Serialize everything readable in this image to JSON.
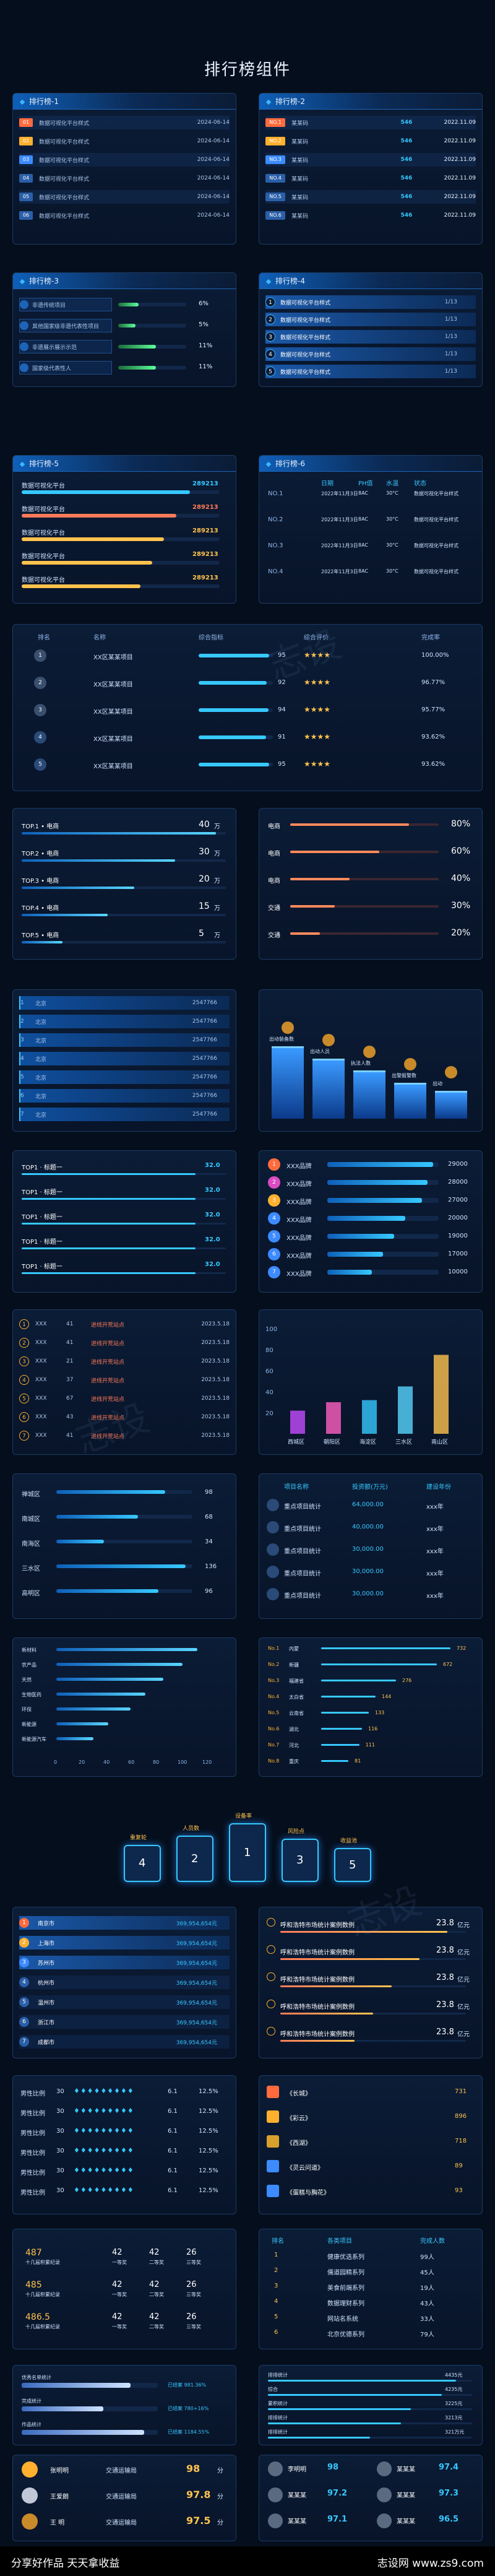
{
  "page": {
    "title": "排行榜组件"
  },
  "p1": {
    "title": "排行榜-1",
    "rows": [
      {
        "rank": "01",
        "label": "数据可视化平台样式",
        "date": "2024-06-14"
      },
      {
        "rank": "02",
        "label": "数据可视化平台样式",
        "date": "2024-06-14"
      },
      {
        "rank": "03",
        "label": "数据可视化平台样式",
        "date": "2024-06-14"
      },
      {
        "rank": "04",
        "label": "数据可视化平台样式",
        "date": "2024-06-14"
      },
      {
        "rank": "05",
        "label": "数据可视化平台样式",
        "date": "2024-06-14"
      },
      {
        "rank": "06",
        "label": "数据可视化平台样式",
        "date": "2024-06-14"
      }
    ]
  },
  "p2": {
    "title": "排行榜-2",
    "rows": [
      {
        "rank": "NO.1",
        "label": "某某码",
        "value": "546",
        "date": "2022.11.09"
      },
      {
        "rank": "NO.2",
        "label": "某某码",
        "value": "546",
        "date": "2022.11.09"
      },
      {
        "rank": "NO.3",
        "label": "某某码",
        "value": "546",
        "date": "2022.11.09"
      },
      {
        "rank": "NO.4",
        "label": "某某码",
        "value": "546",
        "date": "2022.11.09"
      },
      {
        "rank": "NO.5",
        "label": "某某码",
        "value": "546",
        "date": "2022.11.09"
      },
      {
        "rank": "NO.6",
        "label": "某某码",
        "value": "546",
        "date": "2022.11.09"
      }
    ]
  },
  "p3": {
    "title": "排行榜-3",
    "rows": [
      {
        "label": "非遗传统项目",
        "pct": "6%",
        "fill": 0.06
      },
      {
        "label": "其他国家级非遗代表性项目",
        "pct": "5%",
        "fill": 0.05
      },
      {
        "label": "非遗展示展示示范",
        "pct": "11%",
        "fill": 0.11
      },
      {
        "label": "国家级代表性人",
        "pct": "11%",
        "fill": 0.11
      }
    ]
  },
  "p4": {
    "title": "排行榜-4",
    "rows": [
      {
        "rank": "1",
        "label": "数据可视化平台样式",
        "count": "1/13"
      },
      {
        "rank": "2",
        "label": "数据可视化平台样式",
        "count": "1/13"
      },
      {
        "rank": "3",
        "label": "数据可视化平台样式",
        "count": "1/13"
      },
      {
        "rank": "4",
        "label": "数据可视化平台样式",
        "count": "1/13"
      },
      {
        "rank": "5",
        "label": "数据可视化平台样式",
        "count": "1/13"
      }
    ]
  },
  "p5": {
    "title": "排行榜-5",
    "rows": [
      {
        "label": "数据可视化平台",
        "value": "289213",
        "fill": 0.85,
        "color": "#36c8ff"
      },
      {
        "label": "数据可视化平台",
        "value": "289213",
        "fill": 0.78,
        "color": "#ff7a59"
      },
      {
        "label": "数据可视化平台",
        "value": "289213",
        "fill": 0.72,
        "color": "#ffc34d"
      },
      {
        "label": "数据可视化平台",
        "value": "289213",
        "fill": 0.66,
        "color": "#ffc34d"
      },
      {
        "label": "数据可视化平台",
        "value": "289213",
        "fill": 0.6,
        "color": "#ffc34d"
      }
    ]
  },
  "p6": {
    "title": "排行榜-6",
    "headers": [
      "日期",
      "PH值",
      "水温",
      "状态"
    ],
    "rows": [
      {
        "no": "NO.1",
        "date": "2022年11月3日",
        "ph": "8AC",
        "temp": "30°C",
        "state": "数据可视化平台样式"
      },
      {
        "no": "NO.2",
        "date": "2022年11月3日",
        "ph": "8AC",
        "temp": "30°C",
        "state": "数据可视化平台样式"
      },
      {
        "no": "NO.3",
        "date": "2022年11月3日",
        "ph": "8AC",
        "temp": "30°C",
        "state": "数据可视化平台样式"
      },
      {
        "no": "NO.4",
        "date": "2022年11月3日",
        "ph": "8AC",
        "temp": "30°C",
        "state": "数据可视化平台样式"
      }
    ]
  },
  "p7": {
    "headers": [
      "排名",
      "名称",
      "综合指标",
      "综合评价",
      "完成率"
    ],
    "rows": [
      {
        "rank": "1",
        "name": "XX区某某项目",
        "value": "95",
        "stars": 3,
        "pct": "100.00%",
        "fill": 0.95
      },
      {
        "rank": "2",
        "name": "XX区某某项目",
        "value": "92",
        "stars": 3,
        "pct": "96.77%",
        "fill": 0.92
      },
      {
        "rank": "3",
        "name": "XX区某某项目",
        "value": "94",
        "stars": 3,
        "pct": "95.77%",
        "fill": 0.94
      },
      {
        "rank": "4",
        "name": "XX区某某项目",
        "value": "91",
        "stars": 3,
        "pct": "93.62%",
        "fill": 0.91
      },
      {
        "rank": "5",
        "name": "XX区某某项目",
        "value": "95",
        "stars": 3,
        "pct": "93.62%",
        "fill": 0.95
      }
    ]
  },
  "p8": {
    "rows": [
      {
        "label": "TOP.1 • 电商",
        "value": "40",
        "unit": "万",
        "fill": 0.95
      },
      {
        "label": "TOP.2 • 电商",
        "value": "30",
        "unit": "万",
        "fill": 0.75
      },
      {
        "label": "TOP.3 • 电商",
        "value": "20",
        "unit": "万",
        "fill": 0.55
      },
      {
        "label": "TOP.4 • 电商",
        "value": "15",
        "unit": "万",
        "fill": 0.42
      },
      {
        "label": "TOP.5 • 电商",
        "value": "5",
        "unit": "万",
        "fill": 0.2
      }
    ]
  },
  "p9": {
    "rows": [
      {
        "label": "电商",
        "pct": "80%",
        "fill": 0.8
      },
      {
        "label": "电商",
        "pct": "60%",
        "fill": 0.6
      },
      {
        "label": "电商",
        "pct": "40%",
        "fill": 0.4
      },
      {
        "label": "交通",
        "pct": "30%",
        "fill": 0.3
      },
      {
        "label": "交通",
        "pct": "20%",
        "fill": 0.2
      }
    ]
  },
  "p10": {
    "rows": [
      {
        "rank": "1",
        "name": "北京",
        "value": "2547766"
      },
      {
        "rank": "2",
        "name": "北京",
        "value": "2547766"
      },
      {
        "rank": "3",
        "name": "北京",
        "value": "2547766"
      },
      {
        "rank": "4",
        "name": "北京",
        "value": "2547766"
      },
      {
        "rank": "5",
        "name": "北京",
        "value": "2547766"
      },
      {
        "rank": "6",
        "name": "北京",
        "value": "2547766"
      },
      {
        "rank": "7",
        "name": "北京",
        "value": "2547766"
      }
    ]
  },
  "p11": {
    "labels": [
      "出动装备数",
      "出动人员",
      "执法人数",
      "出警报警数",
      "出动"
    ],
    "heights": [
      0.9,
      0.75,
      0.6,
      0.45,
      0.35
    ]
  },
  "p12": {
    "rows": [
      {
        "label": "TOP1 · 标题一",
        "value": "32.0"
      },
      {
        "label": "TOP1 · 标题一",
        "value": "32.0"
      },
      {
        "label": "TOP1 · 标题一",
        "value": "32.0"
      },
      {
        "label": "TOP1 · 标题一",
        "value": "32.0"
      },
      {
        "label": "TOP1 · 标题一",
        "value": "32.0"
      }
    ]
  },
  "p13": {
    "rows": [
      {
        "rank": "1",
        "name": "XXX品牌",
        "value": "29000",
        "fill": 0.95
      },
      {
        "rank": "2",
        "name": "XXX品牌",
        "value": "28000",
        "fill": 0.9
      },
      {
        "rank": "3",
        "name": "XXX品牌",
        "value": "27000",
        "fill": 0.85
      },
      {
        "rank": "4",
        "name": "XXX品牌",
        "value": "20000",
        "fill": 0.7
      },
      {
        "rank": "5",
        "name": "XXX品牌",
        "value": "19000",
        "fill": 0.6
      },
      {
        "rank": "6",
        "name": "XXX品牌",
        "value": "17000",
        "fill": 0.5
      },
      {
        "rank": "7",
        "name": "XXX品牌",
        "value": "10000",
        "fill": 0.4
      }
    ]
  },
  "p14": {
    "rows": [
      {
        "rank": "1",
        "a": "XXX",
        "b": "41",
        "c": "进线开荒站点",
        "d": "2023.5.18"
      },
      {
        "rank": "2",
        "a": "XXX",
        "b": "41",
        "c": "进线开荒站点",
        "d": "2023.5.18"
      },
      {
        "rank": "3",
        "a": "XXX",
        "b": "21",
        "c": "进线开荒站点",
        "d": "2023.5.18"
      },
      {
        "rank": "4",
        "a": "XXX",
        "b": "37",
        "c": "进线开荒站点",
        "d": "2023.5.18"
      },
      {
        "rank": "5",
        "a": "XXX",
        "b": "67",
        "c": "进线开荒站点",
        "d": "2023.5.18"
      },
      {
        "rank": "6",
        "a": "XXX",
        "b": "43",
        "c": "进线开荒站点",
        "d": "2023.5.18"
      },
      {
        "rank": "7",
        "a": "XXX",
        "b": "41",
        "c": "进线开荒站点",
        "d": "2023.5.18"
      }
    ]
  },
  "chart_data": {
    "type": "bar",
    "categories": [
      "西城区",
      "朝阳区",
      "海淀区",
      "三水区",
      "南山区"
    ],
    "values": [
      22,
      30,
      32,
      45,
      75
    ],
    "ylim": [
      0,
      100
    ],
    "yticks": [
      "100",
      "80",
      "60",
      "40",
      "20"
    ]
  },
  "p16": {
    "rows": [
      {
        "label": "禅城区",
        "value": "98",
        "fill": 0.8
      },
      {
        "label": "南城区",
        "value": "68",
        "fill": 0.6
      },
      {
        "label": "南海区",
        "value": "34",
        "fill": 0.35
      },
      {
        "label": "三水区",
        "value": "136",
        "fill": 0.95
      },
      {
        "label": "高明区",
        "value": "96",
        "fill": 0.75
      }
    ]
  },
  "p17": {
    "headers": [
      "项目名称",
      "投资额(万元)",
      "建设年份"
    ],
    "rows": [
      {
        "name": "重点项目统计",
        "value": "64,000.00",
        "year": "xxx年"
      },
      {
        "name": "重点项目统计",
        "value": "40,000.00",
        "year": "xxx年"
      },
      {
        "name": "重点项目统计",
        "value": "30,000.00",
        "year": "xxx年"
      },
      {
        "name": "重点项目统计",
        "value": "30,000.00",
        "year": "xxx年"
      },
      {
        "name": "重点项目统计",
        "value": "30,000.00",
        "year": "xxx年"
      }
    ]
  },
  "p18": {
    "rows": [
      {
        "label": "新材料",
        "fill": 0.95
      },
      {
        "label": "农产品",
        "fill": 0.85
      },
      {
        "label": "天然",
        "fill": 0.72
      },
      {
        "label": "生物医药",
        "fill": 0.6
      },
      {
        "label": "环保",
        "fill": 0.5
      },
      {
        "label": "新能源",
        "fill": 0.35
      },
      {
        "label": "新能源汽车",
        "fill": 0.25
      }
    ],
    "axis": [
      "0",
      "20",
      "40",
      "60",
      "80",
      "100",
      "120"
    ]
  },
  "p19": {
    "rows": [
      {
        "no": "No.1",
        "name": "内蒙",
        "value": "732",
        "fill": 0.95
      },
      {
        "no": "No.2",
        "name": "新疆",
        "value": "672",
        "fill": 0.85
      },
      {
        "no": "No.3",
        "name": "福建省",
        "value": "276",
        "fill": 0.55
      },
      {
        "no": "No.4",
        "name": "太白省",
        "value": "144",
        "fill": 0.4
      },
      {
        "no": "No.5",
        "name": "云南省",
        "value": "133",
        "fill": 0.35
      },
      {
        "no": "No.6",
        "name": "湖北",
        "value": "116",
        "fill": 0.3
      },
      {
        "no": "No.7",
        "name": "河北",
        "value": "111",
        "fill": 0.28
      },
      {
        "no": "No.8",
        "name": "重庆",
        "value": "81",
        "fill": 0.2
      }
    ]
  },
  "p20": {
    "labels": [
      "重复轮",
      "人员数",
      "设备率",
      "风险点",
      "收益池"
    ],
    "values": [
      "4",
      "2",
      "1",
      "3",
      "5"
    ]
  },
  "p21": {
    "rows": [
      {
        "rank": "1",
        "name": "南京市",
        "value": "369,954,654元"
      },
      {
        "rank": "2",
        "name": "上海市",
        "value": "369,954,654元"
      },
      {
        "rank": "3",
        "name": "苏州市",
        "value": "369,954,654元"
      },
      {
        "rank": "4",
        "name": "杭州市",
        "value": "369,954,654元"
      },
      {
        "rank": "5",
        "name": "温州市",
        "value": "369,954,654元"
      },
      {
        "rank": "6",
        "name": "浙江市",
        "value": "369,954,654元"
      },
      {
        "rank": "7",
        "name": "成都市",
        "value": "369,954,654元"
      }
    ]
  },
  "p22": {
    "rows": [
      {
        "label": "呼和浩特市场统计案例数例",
        "value": "23.8",
        "unit": "亿元",
        "fill": 0.9
      },
      {
        "label": "呼和浩特市场统计案例数例",
        "value": "23.8",
        "unit": "亿元",
        "fill": 0.75
      },
      {
        "label": "呼和浩特市场统计案例数例",
        "value": "23.8",
        "unit": "亿元",
        "fill": 0.6
      },
      {
        "label": "呼和浩特市场统计案例数例",
        "value": "23.8",
        "unit": "亿元",
        "fill": 0.5
      },
      {
        "label": "呼和浩特市场统计案例数例",
        "value": "23.8",
        "unit": "亿元",
        "fill": 0.4
      }
    ]
  },
  "p23": {
    "rows": [
      {
        "label": "男性比例",
        "n": "30",
        "v": "6.1",
        "p": "12.5%"
      },
      {
        "label": "男性比例",
        "n": "30",
        "v": "6.1",
        "p": "12.5%"
      },
      {
        "label": "男性比例",
        "n": "30",
        "v": "6.1",
        "p": "12.5%"
      },
      {
        "label": "男性比例",
        "n": "30",
        "v": "6.1",
        "p": "12.5%"
      },
      {
        "label": "男性比例",
        "n": "30",
        "v": "6.1",
        "p": "12.5%"
      },
      {
        "label": "男性比例",
        "n": "30",
        "v": "6.1",
        "p": "12.5%"
      }
    ]
  },
  "p24": {
    "rows": [
      {
        "name": "《长城》",
        "value": "731"
      },
      {
        "name": "《彩云》",
        "value": "896"
      },
      {
        "name": "《西湖》",
        "value": "718"
      },
      {
        "name": "《灵云问道》",
        "value": "89"
      },
      {
        "name": "《蛋糕与胸花》",
        "value": "93"
      }
    ]
  },
  "p25": {
    "rows": [
      {
        "a": "487",
        "sub": "十几届积累纪录",
        "b": "42",
        "bl": "一等奖",
        "c": "42",
        "cl": "二等奖",
        "d": "26",
        "dl": "三等奖"
      },
      {
        "a": "485",
        "sub": "十几届积累纪录",
        "b": "42",
        "bl": "一等奖",
        "c": "42",
        "cl": "二等奖",
        "d": "26",
        "dl": "三等奖"
      },
      {
        "a": "486.5",
        "sub": "十几届积累纪录",
        "b": "42",
        "bl": "一等奖",
        "c": "42",
        "cl": "二等奖",
        "d": "26",
        "dl": "三等奖"
      }
    ]
  },
  "p26": {
    "headers": [
      "排名",
      "各类项目",
      "完成人数"
    ],
    "rows": [
      {
        "rank": "1",
        "name": "健康优选系列",
        "value": "99人"
      },
      {
        "rank": "2",
        "name": "儒道园精系列",
        "value": "45人"
      },
      {
        "rank": "3",
        "name": "美食前端系列",
        "value": "19人"
      },
      {
        "rank": "4",
        "name": "数据理财系列",
        "value": "43人"
      },
      {
        "rank": "5",
        "name": "网站名系统",
        "value": "33人"
      },
      {
        "rank": "6",
        "name": "北京优德系列",
        "value": "79人"
      }
    ]
  },
  "p27": {
    "rows": [
      {
        "label": "优秀名单统计",
        "text": "已结案 981.36%",
        "fill": 0.8
      },
      {
        "label": "完成统计",
        "text": "已结案 780+16%",
        "fill": 0.6
      },
      {
        "label": "作品统计",
        "text": "已结案 1184.55%",
        "fill": 0.9
      }
    ]
  },
  "p28": {
    "rows": [
      {
        "label": "排排统计",
        "value": "4435元",
        "fill": 0.92
      },
      {
        "label": "综合",
        "value": "4235元",
        "fill": 0.85
      },
      {
        "label": "累积统计",
        "value": "3225元",
        "fill": 0.7
      },
      {
        "label": "排排统计",
        "value": "3213元",
        "fill": 0.65
      },
      {
        "label": "排排统计",
        "value": "321万元",
        "fill": 0.5
      }
    ]
  },
  "p29": {
    "rows": [
      {
        "name": "张明明",
        "dept": "交通运输局",
        "value": "98",
        "unit": "分"
      },
      {
        "name": "王爱朗",
        "dept": "交通运输局",
        "value": "97.8",
        "unit": "分"
      },
      {
        "name": "王 明",
        "dept": "交通运输局",
        "value": "97.5",
        "unit": "分"
      }
    ]
  },
  "p30": {
    "rows": [
      {
        "name": "李明明",
        "value": "98",
        "name2": "某某某",
        "value2": "97.4"
      },
      {
        "name": "某某某",
        "value": "97.2",
        "name2": "某某某",
        "value2": "97.3"
      },
      {
        "name": "某某某",
        "value": "97.1",
        "name2": "某某某",
        "value2": "96.5"
      }
    ]
  },
  "footer": {
    "left": "分享好作品 天天拿收益",
    "right": "志设网 www.zs9.com"
  },
  "watermark": "志设"
}
